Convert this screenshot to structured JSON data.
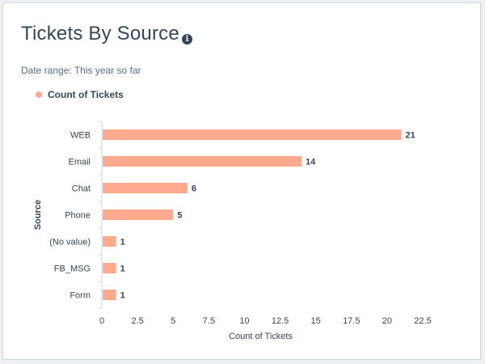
{
  "header": {
    "title": "Tickets By Source",
    "info_icon": "info-circle-icon",
    "date_range": "Date range: This year so far"
  },
  "legend": {
    "label": "Count of Tickets",
    "color": "#ffa98f"
  },
  "chart_data": {
    "type": "bar",
    "orientation": "horizontal",
    "categories": [
      "WEB",
      "Email",
      "Chat",
      "Phone",
      "(No value)",
      "FB_MSG",
      "Form"
    ],
    "series": [
      {
        "name": "Count of Tickets",
        "values": [
          21,
          14,
          6,
          5,
          1,
          1,
          1
        ]
      }
    ],
    "xlabel": "Count of Tickets",
    "ylabel": "Source",
    "xlim": [
      0,
      22.5
    ],
    "xticks": [
      "0",
      "2.5",
      "5",
      "7.5",
      "10",
      "12.5",
      "15",
      "17.5",
      "20",
      "22.5"
    ],
    "data_labels": [
      "21",
      "14",
      "6",
      "5",
      "1",
      "1",
      "1"
    ],
    "legend_position": "top-left",
    "grid": false,
    "colors": {
      "bar": "#ffa98f",
      "axis": "#cbd6e2",
      "text": "#33475b"
    }
  }
}
